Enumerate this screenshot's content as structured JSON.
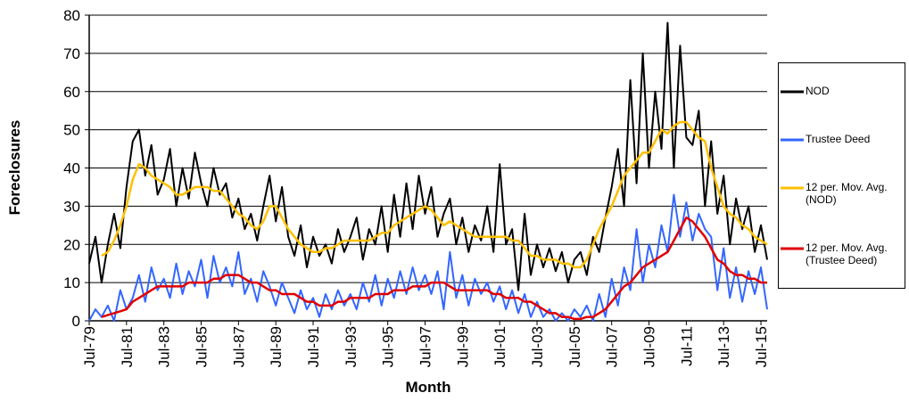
{
  "chart_data": {
    "type": "line",
    "y_label": "Foreclosures",
    "x_label": "Month",
    "categories": [
      "Jul-79",
      null,
      null,
      null,
      null,
      null,
      "Jul-81",
      null,
      null,
      null,
      null,
      null,
      "Jul-83",
      null,
      null,
      null,
      null,
      null,
      "Jul-85",
      null,
      null,
      null,
      null,
      null,
      "Jul-87",
      null,
      null,
      null,
      null,
      null,
      "Jul-89",
      null,
      null,
      null,
      null,
      null,
      "Jul-91",
      null,
      null,
      null,
      null,
      null,
      "Jul-93",
      null,
      null,
      null,
      null,
      null,
      "Jul-95",
      null,
      null,
      null,
      null,
      null,
      "Jul-97",
      null,
      null,
      null,
      null,
      null,
      "Jul-99",
      null,
      null,
      null,
      null,
      null,
      "Jul-01",
      null,
      null,
      null,
      null,
      null,
      "Jul-03",
      null,
      null,
      null,
      null,
      null,
      "Jul-05",
      null,
      null,
      null,
      null,
      null,
      "Jul-07",
      null,
      null,
      null,
      null,
      null,
      "Jul-09",
      null,
      null,
      null,
      null,
      null,
      "Jul-11",
      null,
      null,
      null,
      null,
      null,
      "Jul-13",
      null,
      null,
      null,
      null,
      null,
      "Jul-15",
      null
    ],
    "ylim": [
      0,
      80
    ],
    "yticks": [
      0,
      10,
      20,
      30,
      40,
      50,
      60,
      70,
      80
    ],
    "grid": true,
    "series": [
      {
        "name": "NOD",
        "color": "#000000",
        "values": [
          15,
          22,
          10,
          20,
          28,
          19,
          35,
          47,
          50,
          38,
          46,
          33,
          37,
          45,
          30,
          40,
          32,
          44,
          36,
          30,
          40,
          33,
          36,
          27,
          32,
          24,
          28,
          21,
          30,
          38,
          26,
          35,
          22,
          17,
          25,
          14,
          22,
          17,
          20,
          15,
          24,
          18,
          22,
          27,
          16,
          24,
          20,
          30,
          18,
          33,
          22,
          36,
          24,
          38,
          28,
          35,
          22,
          28,
          32,
          20,
          27,
          18,
          25,
          21,
          30,
          18,
          41,
          20,
          24,
          8,
          28,
          12,
          20,
          14,
          19,
          13,
          18,
          10,
          16,
          18,
          12,
          22,
          18,
          27,
          35,
          45,
          30,
          63,
          36,
          70,
          40,
          60,
          45,
          78,
          40,
          72,
          48,
          46,
          55,
          30,
          47,
          28,
          38,
          20,
          32,
          24,
          30,
          18,
          25,
          16
        ]
      },
      {
        "name": "Trustee Deed",
        "color": "#3366ff",
        "values": [
          0,
          3,
          1,
          4,
          0,
          8,
          3,
          6,
          12,
          5,
          14,
          8,
          11,
          6,
          15,
          7,
          13,
          9,
          16,
          6,
          17,
          10,
          14,
          9,
          18,
          7,
          11,
          5,
          13,
          9,
          4,
          10,
          6,
          2,
          8,
          3,
          6,
          1,
          7,
          3,
          8,
          4,
          7,
          3,
          10,
          5,
          12,
          4,
          11,
          6,
          13,
          7,
          14,
          8,
          12,
          7,
          13,
          3,
          18,
          6,
          12,
          4,
          11,
          7,
          10,
          5,
          9,
          3,
          8,
          2,
          7,
          1,
          5,
          1,
          3,
          0,
          2,
          0,
          3,
          1,
          4,
          0,
          7,
          1,
          11,
          4,
          14,
          8,
          24,
          10,
          20,
          14,
          25,
          18,
          33,
          22,
          31,
          21,
          28,
          24,
          22,
          8,
          19,
          6,
          14,
          5,
          13,
          7,
          14,
          3
        ]
      },
      {
        "name": "12 per. Mov. Avg. (NOD)",
        "color": "#ffc000",
        "values": [
          null,
          null,
          17,
          18,
          21,
          25,
          30,
          37,
          41,
          40,
          38,
          37,
          36,
          35,
          33,
          33,
          34,
          35,
          35,
          35,
          34,
          34,
          32,
          30,
          28,
          27,
          25,
          24,
          26,
          30,
          30,
          27,
          24,
          22,
          20,
          19,
          18,
          18,
          19,
          19,
          20,
          21,
          21,
          21,
          21,
          21,
          22,
          23,
          23,
          25,
          26,
          27,
          28,
          29,
          30,
          29,
          27,
          25,
          26,
          25,
          24,
          23,
          22,
          22,
          22,
          22,
          22,
          22,
          21,
          21,
          19,
          17,
          17,
          16,
          16,
          16,
          15,
          15,
          14,
          14,
          16,
          20,
          24,
          27,
          30,
          34,
          38,
          40,
          42,
          44,
          44,
          47,
          50,
          49,
          51,
          52,
          52,
          50,
          48,
          47,
          40,
          35,
          30,
          28,
          27,
          25,
          24,
          22,
          21,
          20
        ]
      },
      {
        "name": "12 per. Mov. Avg. (Trustee Deed)",
        "color": "#e00000",
        "values": [
          null,
          null,
          1,
          1.5,
          2,
          2.5,
          3,
          5,
          6,
          7,
          8,
          9,
          9,
          9,
          9,
          9,
          10,
          10,
          10,
          10,
          11,
          11,
          12,
          12,
          12,
          11,
          10,
          10,
          9,
          8,
          8,
          7,
          7,
          7,
          6,
          5,
          5,
          4,
          4,
          4,
          5,
          5,
          6,
          6,
          6,
          6,
          7,
          7,
          7,
          8,
          8,
          8,
          9,
          9,
          9,
          10,
          10,
          10,
          9,
          8,
          8,
          8,
          8,
          8,
          8,
          7,
          7,
          6,
          6,
          6,
          5,
          5,
          4,
          3,
          2,
          2,
          1,
          1,
          0.5,
          0.5,
          1,
          1,
          2,
          3,
          5,
          7,
          9,
          10,
          12,
          14,
          15,
          16,
          17,
          18,
          21,
          24,
          27,
          26,
          24,
          22,
          19,
          16,
          15,
          13,
          12,
          12,
          11,
          11,
          10,
          10
        ]
      }
    ]
  }
}
